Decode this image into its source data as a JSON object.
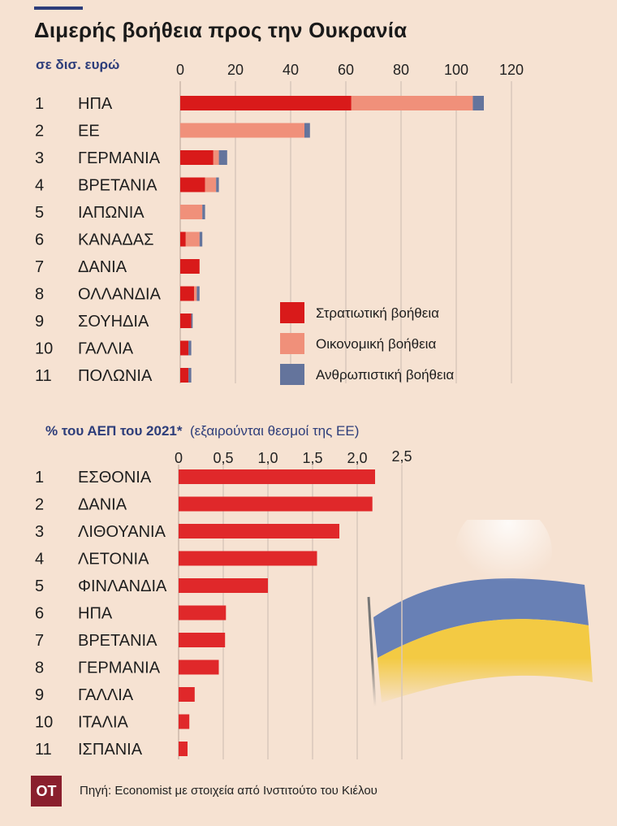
{
  "title": "Διμερής βοήθεια προς την Ουκρανία",
  "chart1_unit": "σε δισ. ευρώ",
  "chart2_unit_bold": "% του ΑΕΠ του 2021*",
  "chart2_unit_note": "(εξαιρούνται θεσμοί της ΕΕ)",
  "source": "Πηγή: Economist με στοιχεία από Ινστιτούτο του Κιέλου",
  "logo": "ΟΤ",
  "chart_data": [
    {
      "type": "bar",
      "orientation": "horizontal",
      "stacked": true,
      "ranks": [
        "1",
        "2",
        "3",
        "4",
        "5",
        "6",
        "7",
        "8",
        "9",
        "10",
        "11"
      ],
      "categories": [
        "ΗΠΑ",
        "ΕΕ",
        "ΓΕΡΜΑΝΙΑ",
        "ΒΡΕΤΑΝΙΑ",
        "ΙΑΠΩΝΙΑ",
        "ΚΑΝΑΔΑΣ",
        "ΔΑΝΙΑ",
        "ΟΛΛΑΝΔΙΑ",
        "ΣΟΥΗΔΙΑ",
        "ΓΑΛΛΙΑ",
        "ΠΟΛΩΝΙΑ"
      ],
      "series": [
        {
          "name": "Στρατιωτική βοήθεια",
          "color": "#d91a1a",
          "values": [
            62,
            0,
            12,
            9,
            0,
            2,
            7,
            5,
            4,
            3,
            3
          ]
        },
        {
          "name": "Οικονομική βοήθεια",
          "color": "#f0907a",
          "values": [
            44,
            45,
            2,
            4,
            8,
            5,
            0,
            1,
            0,
            0,
            0
          ]
        },
        {
          "name": "Ανθρωπιστική βοήθεια",
          "color": "#64749c",
          "values": [
            4,
            2,
            3,
            1,
            1,
            1,
            0,
            1,
            0.5,
            1,
            1
          ]
        }
      ],
      "xticks": [
        "0",
        "20",
        "40",
        "60",
        "80",
        "100",
        "120"
      ],
      "xlim": [
        0,
        120
      ],
      "grid": true,
      "legend_position": "bottom-right"
    },
    {
      "type": "bar",
      "orientation": "horizontal",
      "ranks": [
        "1",
        "2",
        "3",
        "4",
        "5",
        "6",
        "7",
        "8",
        "9",
        "10",
        "11"
      ],
      "categories": [
        "ΕΣΘΟΝΙΑ",
        "ΔΑΝΙΑ",
        "ΛΙΘΟΥΑΝΙΑ",
        "ΛΕΤΟΝΙΑ",
        "ΦΙΝΛΑΝΔΙΑ",
        "ΗΠΑ",
        "ΒΡΕΤΑΝΙΑ",
        "ΓΕΡΜΑΝΙΑ",
        "ΓΑΛΛΙΑ",
        "ΙΤΑΛΙΑ",
        "ΙΣΠΑΝΙΑ"
      ],
      "values": [
        2.2,
        2.17,
        1.8,
        1.55,
        1.0,
        0.53,
        0.52,
        0.45,
        0.18,
        0.12,
        0.1
      ],
      "color": "#e0282a",
      "xticks": [
        "0",
        "0,5",
        "1,0",
        "1,5",
        "2,0",
        "2,5"
      ],
      "xlim": [
        0,
        2.5
      ],
      "grid": true
    }
  ]
}
